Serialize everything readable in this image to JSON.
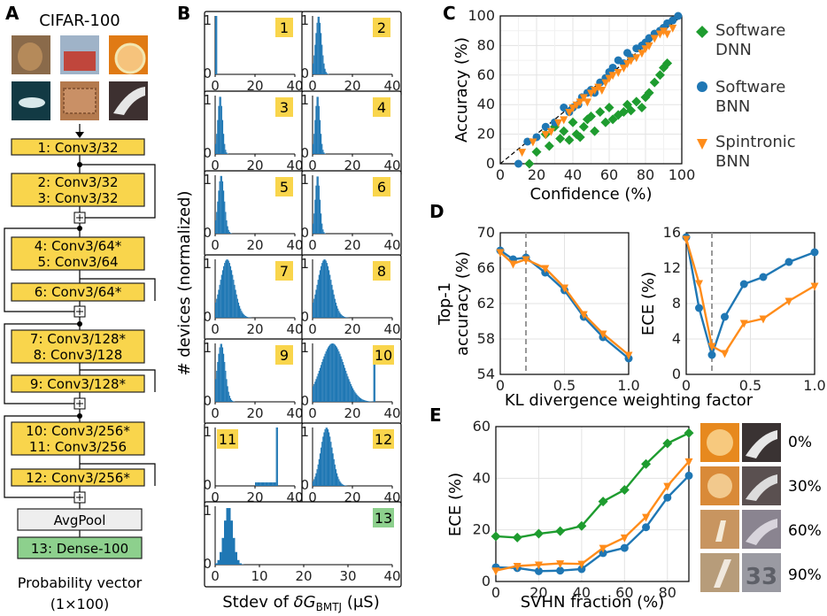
{
  "panels": {
    "a": "A",
    "b": "B",
    "c": "C",
    "d": "D",
    "e": "E"
  },
  "colors": {
    "software_dnn": "#1e9c2f",
    "software_bnn": "#1f77b4",
    "spintronic_bnn": "#ff8c1a",
    "hist": "#1f77b4",
    "block_yellow": "#f9d54c",
    "block_gray": "#eeeeee",
    "block_green": "#8dd08d"
  },
  "network": {
    "dataset_title": "CIFAR-100",
    "blocks": [
      {
        "text": "1: Conv3/32",
        "kind": "conv"
      },
      {
        "text": "2: Conv3/32",
        "kind": "conv"
      },
      {
        "text": "3: Conv3/32",
        "kind": "conv"
      },
      {
        "text": "4: Conv3/64*",
        "kind": "conv"
      },
      {
        "text": "5: Conv3/64",
        "kind": "conv"
      },
      {
        "text": "6: Conv3/64*",
        "kind": "conv"
      },
      {
        "text": "7: Conv3/128*",
        "kind": "conv"
      },
      {
        "text": "8: Conv3/128",
        "kind": "conv"
      },
      {
        "text": "9: Conv3/128*",
        "kind": "conv"
      },
      {
        "text": "10: Conv3/256*",
        "kind": "conv"
      },
      {
        "text": "11: Conv3/256",
        "kind": "conv"
      },
      {
        "text": "12: Conv3/256*",
        "kind": "conv"
      },
      {
        "text": "AvgPool",
        "kind": "pool"
      },
      {
        "text": "13: Dense-100",
        "kind": "dense"
      }
    ],
    "output_label": "Probability vector",
    "output_shape": "(1×100)"
  },
  "chart_data": [
    {
      "panel": "B",
      "type": "histogram",
      "ylabel": "# devices (normalized)",
      "xlabel": "Stdev of δG_BMTJ (μS)",
      "xticks": [
        0,
        20,
        40
      ],
      "yticks": [
        0,
        1
      ],
      "wide_xticks": [
        0,
        10,
        20,
        30,
        40
      ],
      "layers": [
        {
          "id": "1",
          "mean": 0.3,
          "sd": 0.15
        },
        {
          "id": "2",
          "mean": 3,
          "sd": 1.5
        },
        {
          "id": "3",
          "mean": 2.5,
          "sd": 1.2
        },
        {
          "id": "4",
          "mean": 2.5,
          "sd": 1.2
        },
        {
          "id": "5",
          "mean": 3,
          "sd": 1.6
        },
        {
          "id": "6",
          "mean": 2.5,
          "sd": 1.2
        },
        {
          "id": "7",
          "mean": 6,
          "sd": 3.5
        },
        {
          "id": "8",
          "mean": 6,
          "sd": 3.5
        },
        {
          "id": "9",
          "mean": 3,
          "sd": 2
        },
        {
          "id": "10",
          "mean": 10,
          "sd": 6,
          "spike": 31
        },
        {
          "id": "11",
          "mean": 31,
          "sd": 0.4,
          "tail": true
        },
        {
          "id": "12",
          "mean": 7,
          "sd": 3
        },
        {
          "id": "13",
          "mean": 3,
          "sd": 1
        }
      ]
    },
    {
      "panel": "C",
      "type": "scatter",
      "xlabel": "Confidence (%)",
      "ylabel": "Accuracy (%)",
      "xlim": [
        0,
        100
      ],
      "ylim": [
        0,
        100
      ],
      "ticks": [
        0,
        20,
        40,
        60,
        80,
        100
      ],
      "series": [
        {
          "name": "Software DNN",
          "legend": [
            "Software",
            "DNN"
          ],
          "marker": "diamond",
          "x": [
            16,
            20,
            25,
            27,
            30,
            33,
            35,
            38,
            40,
            42,
            44,
            46,
            48,
            50,
            52,
            55,
            58,
            60,
            62,
            65,
            68,
            70,
            72,
            75,
            78,
            80,
            82,
            85,
            88,
            90,
            92
          ],
          "y": [
            0,
            8,
            20,
            12,
            25,
            17,
            22,
            16,
            28,
            20,
            18,
            25,
            30,
            32,
            22,
            35,
            28,
            38,
            30,
            33,
            35,
            40,
            36,
            42,
            38,
            45,
            48,
            55,
            60,
            65,
            68
          ]
        },
        {
          "name": "Software BNN",
          "legend": [
            "Software",
            "BNN"
          ],
          "marker": "circle",
          "x": [
            10,
            15,
            20,
            25,
            30,
            35,
            38,
            40,
            43,
            45,
            48,
            50,
            52,
            55,
            58,
            60,
            62,
            65,
            68,
            70,
            72,
            75,
            78,
            80,
            82,
            85,
            88,
            90,
            92,
            95,
            98
          ],
          "y": [
            0,
            15,
            18,
            25,
            28,
            38,
            35,
            38,
            40,
            45,
            48,
            50,
            48,
            55,
            58,
            62,
            65,
            70,
            68,
            75,
            72,
            78,
            80,
            82,
            85,
            88,
            90,
            92,
            95,
            97,
            100
          ]
        },
        {
          "name": "Spintronic BNN",
          "legend": [
            "Spintronic",
            "BNN"
          ],
          "marker": "triangle",
          "x": [
            12,
            18,
            25,
            28,
            32,
            35,
            38,
            40,
            42,
            44,
            46,
            48,
            50,
            52,
            54,
            56,
            58,
            60,
            62,
            65,
            68,
            70,
            72,
            75,
            78,
            80,
            82,
            85,
            88,
            90,
            92,
            95
          ],
          "y": [
            8,
            15,
            20,
            22,
            28,
            30,
            35,
            38,
            40,
            42,
            45,
            42,
            48,
            50,
            52,
            50,
            55,
            58,
            60,
            62,
            65,
            68,
            70,
            72,
            75,
            78,
            80,
            85,
            88,
            90,
            88,
            92
          ]
        }
      ]
    },
    {
      "panel": "D-left",
      "type": "line",
      "xlabel": "KL divergence weighting factor",
      "ylabel": [
        "Top-1",
        "accuracy (%)"
      ],
      "xlim": [
        0,
        1
      ],
      "ylim": [
        54,
        70
      ],
      "xticks": [
        0,
        0.5,
        1.0
      ],
      "xticklabels": [
        "0",
        "0.5",
        "1.0"
      ],
      "yticks": [
        54,
        58,
        62,
        66,
        70
      ],
      "vline": 0.2,
      "series": [
        {
          "name": "Software BNN",
          "marker": "circle",
          "x": [
            0,
            0.1,
            0.2,
            0.35,
            0.5,
            0.65,
            0.8,
            1.0
          ],
          "y": [
            68,
            67,
            67.2,
            65.5,
            63.5,
            60.5,
            58.2,
            55.8
          ]
        },
        {
          "name": "Spintronic BNN",
          "marker": "triangle",
          "x": [
            0,
            0.1,
            0.2,
            0.35,
            0.5,
            0.65,
            0.8,
            1.0
          ],
          "y": [
            67.8,
            66.5,
            67,
            66,
            63.8,
            60.8,
            58.6,
            56.2
          ]
        }
      ]
    },
    {
      "panel": "D-right",
      "type": "line",
      "ylabel": "ECE (%)",
      "xlim": [
        0,
        1
      ],
      "ylim": [
        0,
        16
      ],
      "xticks": [
        0,
        0.5,
        1.0
      ],
      "xticklabels": [
        "0",
        "0.5",
        "1.0"
      ],
      "yticks": [
        0,
        4,
        8,
        12,
        16
      ],
      "vline": 0.2,
      "series": [
        {
          "name": "Software BNN",
          "marker": "circle",
          "x": [
            0,
            0.1,
            0.2,
            0.3,
            0.45,
            0.6,
            0.8,
            1.0
          ],
          "y": [
            15.5,
            7.5,
            2.2,
            6.5,
            10.2,
            11,
            12.7,
            13.8
          ]
        },
        {
          "name": "Spintronic BNN",
          "marker": "triangle",
          "x": [
            0,
            0.1,
            0.2,
            0.3,
            0.45,
            0.6,
            0.8,
            1.0
          ],
          "y": [
            15.3,
            10.3,
            3.2,
            2.4,
            5.8,
            6.3,
            8.3,
            10
          ]
        }
      ]
    },
    {
      "panel": "E",
      "type": "line",
      "xlabel": "SVHN fraction (%)",
      "ylabel": "ECE (%)",
      "xlim": [
        0,
        90
      ],
      "ylim": [
        0,
        60
      ],
      "xticks": [
        0,
        20,
        40,
        60,
        80
      ],
      "yticks": [
        0,
        20,
        40,
        60
      ],
      "series": [
        {
          "name": "Software DNN",
          "marker": "diamond",
          "x": [
            0,
            10,
            20,
            30,
            40,
            50,
            60,
            70,
            80,
            90
          ],
          "y": [
            17.5,
            17,
            18.5,
            19.5,
            21.5,
            31,
            35.5,
            45.5,
            53.5,
            57.5
          ]
        },
        {
          "name": "Software BNN",
          "marker": "circle",
          "x": [
            0,
            10,
            20,
            30,
            40,
            50,
            60,
            70,
            80,
            90
          ],
          "y": [
            5.5,
            5.2,
            4,
            4.2,
            4.8,
            11,
            13,
            21,
            32.5,
            41
          ]
        },
        {
          "name": "Spintronic BNN",
          "marker": "triangle",
          "x": [
            0,
            10,
            20,
            30,
            40,
            50,
            60,
            70,
            80,
            90
          ],
          "y": [
            4.2,
            6,
            6.5,
            7,
            6.8,
            13,
            17,
            25,
            37,
            46.5
          ]
        }
      ],
      "side_labels": [
        "0%",
        "30%",
        "60%",
        "90%"
      ]
    }
  ]
}
